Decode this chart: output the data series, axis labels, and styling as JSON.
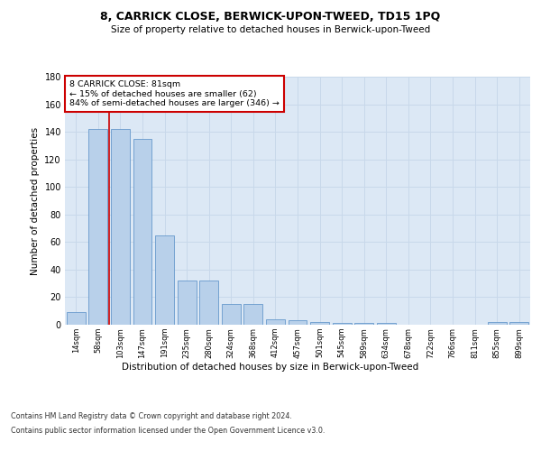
{
  "title": "8, CARRICK CLOSE, BERWICK-UPON-TWEED, TD15 1PQ",
  "subtitle": "Size of property relative to detached houses in Berwick-upon-Tweed",
  "xlabel": "Distribution of detached houses by size in Berwick-upon-Tweed",
  "ylabel": "Number of detached properties",
  "categories": [
    "14sqm",
    "58sqm",
    "103sqm",
    "147sqm",
    "191sqm",
    "235sqm",
    "280sqm",
    "324sqm",
    "368sqm",
    "412sqm",
    "457sqm",
    "501sqm",
    "545sqm",
    "589sqm",
    "634sqm",
    "678sqm",
    "722sqm",
    "766sqm",
    "811sqm",
    "855sqm",
    "899sqm"
  ],
  "values": [
    9,
    142,
    142,
    135,
    65,
    32,
    32,
    15,
    15,
    4,
    3,
    2,
    1,
    1,
    1,
    0,
    0,
    0,
    0,
    2,
    2
  ],
  "bar_color": "#b8d0ea",
  "bar_edge_color": "#6699cc",
  "grid_color": "#c8d8ea",
  "annotation_box_text": "8 CARRICK CLOSE: 81sqm\n← 15% of detached houses are smaller (62)\n84% of semi-detached houses are larger (346) →",
  "annotation_box_color": "#ffffff",
  "annotation_box_edge_color": "#cc0000",
  "vline_x": 1.5,
  "vline_color": "#cc0000",
  "ylim": [
    0,
    180
  ],
  "yticks": [
    0,
    20,
    40,
    60,
    80,
    100,
    120,
    140,
    160,
    180
  ],
  "footer_line1": "Contains HM Land Registry data © Crown copyright and database right 2024.",
  "footer_line2": "Contains public sector information licensed under the Open Government Licence v3.0.",
  "bg_color": "#dce8f5",
  "fig_bg_color": "#ffffff"
}
